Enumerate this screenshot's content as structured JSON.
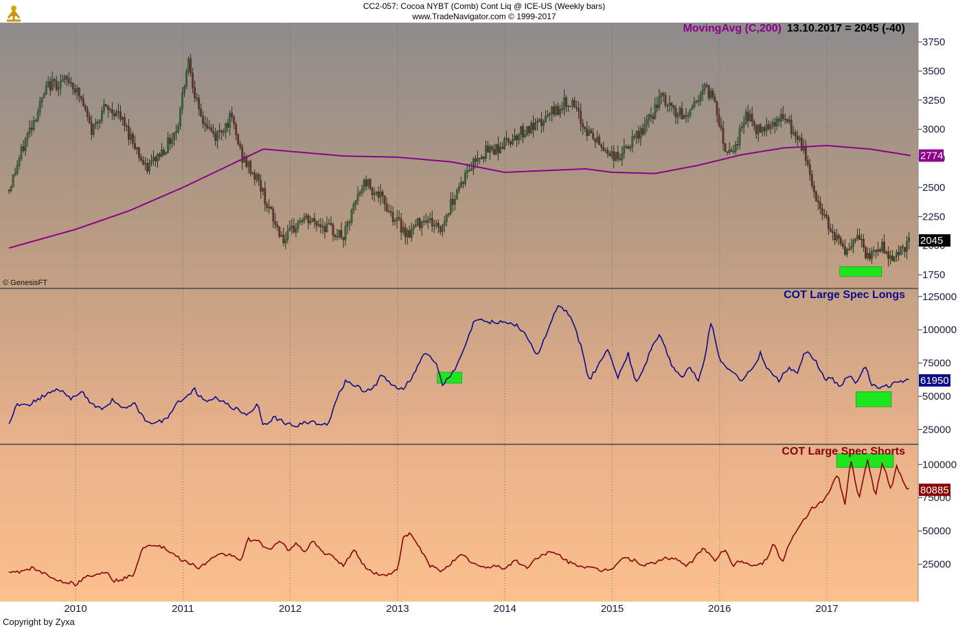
{
  "header": {
    "line1": "CC2-057:  Cocoa NYBT (Comb) Cont Liq @ ICE-US  (Weekly bars)",
    "line2": "www.TradeNavigator.com © 1999-2017"
  },
  "watermark": "© GenesisFT",
  "copyright": "Copyright by Zyxa",
  "logo_icon": "gold-trader-figure-icon",
  "colors": {
    "price": "#1f2f20",
    "ma": "#8a008a",
    "longs": "#0a0a8a",
    "shorts": "#8a0000",
    "highlight": "#1ee61e",
    "panel_top": "#8e8c8c",
    "panel_bottom": "#fcc08c"
  },
  "chart_data": [
    {
      "type": "candlestick",
      "id": "price",
      "legend_label": "MovingAvg (C,200)",
      "readout": "13.10.2017 = 2045 (-40)",
      "y_ticks": [
        1750,
        2000,
        2250,
        2500,
        2750,
        3000,
        3250,
        3500,
        3750
      ],
      "ylim": [
        1680,
        3880
      ],
      "last_value": 2045,
      "ma_last_value": 2774,
      "price_keypoints": [
        [
          2009.38,
          2480
        ],
        [
          2009.55,
          2950
        ],
        [
          2009.75,
          3380
        ],
        [
          2009.95,
          3420
        ],
        [
          2010.05,
          3260
        ],
        [
          2010.15,
          2980
        ],
        [
          2010.25,
          3170
        ],
        [
          2010.38,
          3150
        ],
        [
          2010.55,
          2880
        ],
        [
          2010.65,
          2650
        ],
        [
          2010.85,
          2860
        ],
        [
          2010.95,
          3020
        ],
        [
          2011.05,
          3620
        ],
        [
          2011.15,
          3120
        ],
        [
          2011.3,
          2930
        ],
        [
          2011.45,
          3100
        ],
        [
          2011.55,
          2760
        ],
        [
          2011.7,
          2560
        ],
        [
          2011.85,
          2200
        ],
        [
          2011.95,
          2040
        ],
        [
          2012.1,
          2230
        ],
        [
          2012.3,
          2180
        ],
        [
          2012.5,
          2070
        ],
        [
          2012.62,
          2400
        ],
        [
          2012.7,
          2560
        ],
        [
          2012.85,
          2400
        ],
        [
          2013.0,
          2200
        ],
        [
          2013.1,
          2100
        ],
        [
          2013.25,
          2250
        ],
        [
          2013.4,
          2140
        ],
        [
          2013.55,
          2480
        ],
        [
          2013.75,
          2780
        ],
        [
          2013.95,
          2850
        ],
        [
          2014.15,
          2980
        ],
        [
          2014.3,
          3020
        ],
        [
          2014.45,
          3150
        ],
        [
          2014.6,
          3250
        ],
        [
          2014.75,
          3000
        ],
        [
          2014.9,
          2850
        ],
        [
          2015.05,
          2750
        ],
        [
          2015.2,
          2900
        ],
        [
          2015.35,
          3080
        ],
        [
          2015.45,
          3270
        ],
        [
          2015.58,
          3150
        ],
        [
          2015.68,
          3100
        ],
        [
          2015.85,
          3350
        ],
        [
          2015.95,
          3280
        ],
        [
          2016.05,
          2830
        ],
        [
          2016.15,
          2850
        ],
        [
          2016.25,
          3150
        ],
        [
          2016.35,
          2980
        ],
        [
          2016.45,
          3050
        ],
        [
          2016.6,
          3100
        ],
        [
          2016.7,
          2950
        ],
        [
          2016.8,
          2780
        ],
        [
          2016.9,
          2380
        ],
        [
          2017.0,
          2220
        ],
        [
          2017.1,
          2050
        ],
        [
          2017.2,
          1930
        ],
        [
          2017.3,
          2080
        ],
        [
          2017.38,
          1880
        ],
        [
          2017.5,
          2000
        ],
        [
          2017.6,
          1900
        ],
        [
          2017.7,
          1970
        ],
        [
          2017.78,
          2045
        ]
      ],
      "ma_keypoints": [
        [
          2009.38,
          1980
        ],
        [
          2010.0,
          2140
        ],
        [
          2010.5,
          2300
        ],
        [
          2011.0,
          2500
        ],
        [
          2011.5,
          2720
        ],
        [
          2011.75,
          2830
        ],
        [
          2012.0,
          2810
        ],
        [
          2012.5,
          2770
        ],
        [
          2013.0,
          2760
        ],
        [
          2013.5,
          2720
        ],
        [
          2014.0,
          2630
        ],
        [
          2014.5,
          2650
        ],
        [
          2014.75,
          2660
        ],
        [
          2015.0,
          2630
        ],
        [
          2015.4,
          2620
        ],
        [
          2015.8,
          2690
        ],
        [
          2016.2,
          2780
        ],
        [
          2016.6,
          2840
        ],
        [
          2017.0,
          2860
        ],
        [
          2017.4,
          2830
        ],
        [
          2017.78,
          2774
        ]
      ],
      "highlight_ranges": [
        [
          2017.12,
          2017.51
        ]
      ]
    },
    {
      "type": "line",
      "id": "longs",
      "title": "COT Large Spec Longs",
      "y_ticks": [
        25000,
        50000,
        75000,
        100000,
        125000
      ],
      "ylim": [
        18000,
        128000
      ],
      "last_value": 61950,
      "keypoints": [
        [
          2009.38,
          28000
        ],
        [
          2009.45,
          45000
        ],
        [
          2009.55,
          42000
        ],
        [
          2009.65,
          48000
        ],
        [
          2009.75,
          52000
        ],
        [
          2009.85,
          55000
        ],
        [
          2009.95,
          48000
        ],
        [
          2010.05,
          54000
        ],
        [
          2010.15,
          44000
        ],
        [
          2010.25,
          40000
        ],
        [
          2010.35,
          48000
        ],
        [
          2010.45,
          40000
        ],
        [
          2010.55,
          44000
        ],
        [
          2010.65,
          32000
        ],
        [
          2010.75,
          30000
        ],
        [
          2010.85,
          33000
        ],
        [
          2010.95,
          46000
        ],
        [
          2011.05,
          50000
        ],
        [
          2011.1,
          56000
        ],
        [
          2011.2,
          46000
        ],
        [
          2011.3,
          50000
        ],
        [
          2011.4,
          44000
        ],
        [
          2011.5,
          40000
        ],
        [
          2011.6,
          36000
        ],
        [
          2011.7,
          44000
        ],
        [
          2011.75,
          28000
        ],
        [
          2011.85,
          34000
        ],
        [
          2011.95,
          30000
        ],
        [
          2012.05,
          27000
        ],
        [
          2012.15,
          31000
        ],
        [
          2012.25,
          30000
        ],
        [
          2012.35,
          28000
        ],
        [
          2012.42,
          46000
        ],
        [
          2012.52,
          62000
        ],
        [
          2012.6,
          58000
        ],
        [
          2012.7,
          54000
        ],
        [
          2012.8,
          58000
        ],
        [
          2012.85,
          66000
        ],
        [
          2012.95,
          58000
        ],
        [
          2013.05,
          56000
        ],
        [
          2013.15,
          66000
        ],
        [
          2013.25,
          84000
        ],
        [
          2013.35,
          76000
        ],
        [
          2013.42,
          58000
        ],
        [
          2013.55,
          72000
        ],
        [
          2013.65,
          92000
        ],
        [
          2013.72,
          108000
        ],
        [
          2013.82,
          106000
        ],
        [
          2014.0,
          106000
        ],
        [
          2014.1,
          104000
        ],
        [
          2014.2,
          96000
        ],
        [
          2014.3,
          80000
        ],
        [
          2014.42,
          104000
        ],
        [
          2014.5,
          118000
        ],
        [
          2014.6,
          112000
        ],
        [
          2014.7,
          90000
        ],
        [
          2014.78,
          62000
        ],
        [
          2014.85,
          70000
        ],
        [
          2014.95,
          86000
        ],
        [
          2015.05,
          64000
        ],
        [
          2015.15,
          82000
        ],
        [
          2015.22,
          60000
        ],
        [
          2015.3,
          72000
        ],
        [
          2015.38,
          90000
        ],
        [
          2015.45,
          96000
        ],
        [
          2015.55,
          74000
        ],
        [
          2015.65,
          64000
        ],
        [
          2015.72,
          72000
        ],
        [
          2015.8,
          62000
        ],
        [
          2015.85,
          74000
        ],
        [
          2015.92,
          106000
        ],
        [
          2016.0,
          78000
        ],
        [
          2016.1,
          70000
        ],
        [
          2016.2,
          62000
        ],
        [
          2016.3,
          70000
        ],
        [
          2016.38,
          82000
        ],
        [
          2016.45,
          70000
        ],
        [
          2016.55,
          62000
        ],
        [
          2016.65,
          72000
        ],
        [
          2016.72,
          66000
        ],
        [
          2016.8,
          84000
        ],
        [
          2016.9,
          76000
        ],
        [
          2016.98,
          62000
        ],
        [
          2017.05,
          64000
        ],
        [
          2017.12,
          56000
        ],
        [
          2017.2,
          66000
        ],
        [
          2017.28,
          60000
        ],
        [
          2017.35,
          74000
        ],
        [
          2017.42,
          58000
        ],
        [
          2017.5,
          56000
        ],
        [
          2017.58,
          58000
        ],
        [
          2017.65,
          60000
        ],
        [
          2017.72,
          62000
        ],
        [
          2017.78,
          61950
        ]
      ],
      "highlight_ranges": [
        [
          2013.37,
          2013.6
        ],
        [
          2017.27,
          2017.6
        ]
      ]
    },
    {
      "type": "line",
      "id": "shorts",
      "title": "COT Large Spec Shorts",
      "y_ticks": [
        25000,
        50000,
        75000,
        100000
      ],
      "ylim": [
        0,
        112000
      ],
      "last_value": 80885,
      "keypoints": [
        [
          2009.38,
          18000
        ],
        [
          2009.5,
          20000
        ],
        [
          2009.6,
          22000
        ],
        [
          2009.7,
          18000
        ],
        [
          2009.8,
          14000
        ],
        [
          2009.9,
          12000
        ],
        [
          2010.0,
          10000
        ],
        [
          2010.1,
          16000
        ],
        [
          2010.2,
          17000
        ],
        [
          2010.3,
          20000
        ],
        [
          2010.35,
          12000
        ],
        [
          2010.45,
          14000
        ],
        [
          2010.55,
          18000
        ],
        [
          2010.62,
          38000
        ],
        [
          2010.75,
          40000
        ],
        [
          2010.85,
          36000
        ],
        [
          2010.95,
          30000
        ],
        [
          2011.05,
          26000
        ],
        [
          2011.15,
          22000
        ],
        [
          2011.25,
          28000
        ],
        [
          2011.35,
          32000
        ],
        [
          2011.45,
          32000
        ],
        [
          2011.55,
          28000
        ],
        [
          2011.6,
          44000
        ],
        [
          2011.7,
          42000
        ],
        [
          2011.8,
          36000
        ],
        [
          2011.9,
          42000
        ],
        [
          2011.98,
          36000
        ],
        [
          2012.05,
          40000
        ],
        [
          2012.15,
          34000
        ],
        [
          2012.2,
          44000
        ],
        [
          2012.3,
          34000
        ],
        [
          2012.4,
          30000
        ],
        [
          2012.5,
          24000
        ],
        [
          2012.6,
          36000
        ],
        [
          2012.7,
          22000
        ],
        [
          2012.8,
          18000
        ],
        [
          2012.9,
          16000
        ],
        [
          2013.0,
          22000
        ],
        [
          2013.05,
          44000
        ],
        [
          2013.12,
          48000
        ],
        [
          2013.2,
          38000
        ],
        [
          2013.3,
          24000
        ],
        [
          2013.4,
          20000
        ],
        [
          2013.5,
          26000
        ],
        [
          2013.6,
          32000
        ],
        [
          2013.7,
          26000
        ],
        [
          2013.8,
          22000
        ],
        [
          2013.9,
          24000
        ],
        [
          2014.0,
          22000
        ],
        [
          2014.1,
          28000
        ],
        [
          2014.2,
          22000
        ],
        [
          2014.3,
          30000
        ],
        [
          2014.4,
          34000
        ],
        [
          2014.5,
          32000
        ],
        [
          2014.6,
          26000
        ],
        [
          2014.7,
          24000
        ],
        [
          2014.8,
          22000
        ],
        [
          2014.9,
          20000
        ],
        [
          2015.0,
          22000
        ],
        [
          2015.1,
          30000
        ],
        [
          2015.2,
          28000
        ],
        [
          2015.3,
          24000
        ],
        [
          2015.4,
          26000
        ],
        [
          2015.5,
          30000
        ],
        [
          2015.6,
          28000
        ],
        [
          2015.7,
          24000
        ],
        [
          2015.8,
          32000
        ],
        [
          2015.85,
          38000
        ],
        [
          2015.95,
          28000
        ],
        [
          2016.05,
          36000
        ],
        [
          2016.12,
          24000
        ],
        [
          2016.2,
          28000
        ],
        [
          2016.3,
          24000
        ],
        [
          2016.4,
          26000
        ],
        [
          2016.45,
          30000
        ],
        [
          2016.5,
          42000
        ],
        [
          2016.58,
          26000
        ],
        [
          2016.65,
          40000
        ],
        [
          2016.75,
          54000
        ],
        [
          2016.85,
          66000
        ],
        [
          2016.95,
          72000
        ],
        [
          2017.02,
          78000
        ],
        [
          2017.1,
          94000
        ],
        [
          2017.17,
          68000
        ],
        [
          2017.22,
          104000
        ],
        [
          2017.3,
          74000
        ],
        [
          2017.38,
          104000
        ],
        [
          2017.45,
          76000
        ],
        [
          2017.52,
          102000
        ],
        [
          2017.6,
          80000
        ],
        [
          2017.65,
          100000
        ],
        [
          2017.72,
          84000
        ],
        [
          2017.78,
          80885
        ]
      ],
      "highlight_ranges": [
        [
          2017.09,
          2017.62
        ]
      ]
    }
  ],
  "x_axis": {
    "years": [
      "2010",
      "2011",
      "2012",
      "2013",
      "2014",
      "2015",
      "2016",
      "2017"
    ]
  }
}
